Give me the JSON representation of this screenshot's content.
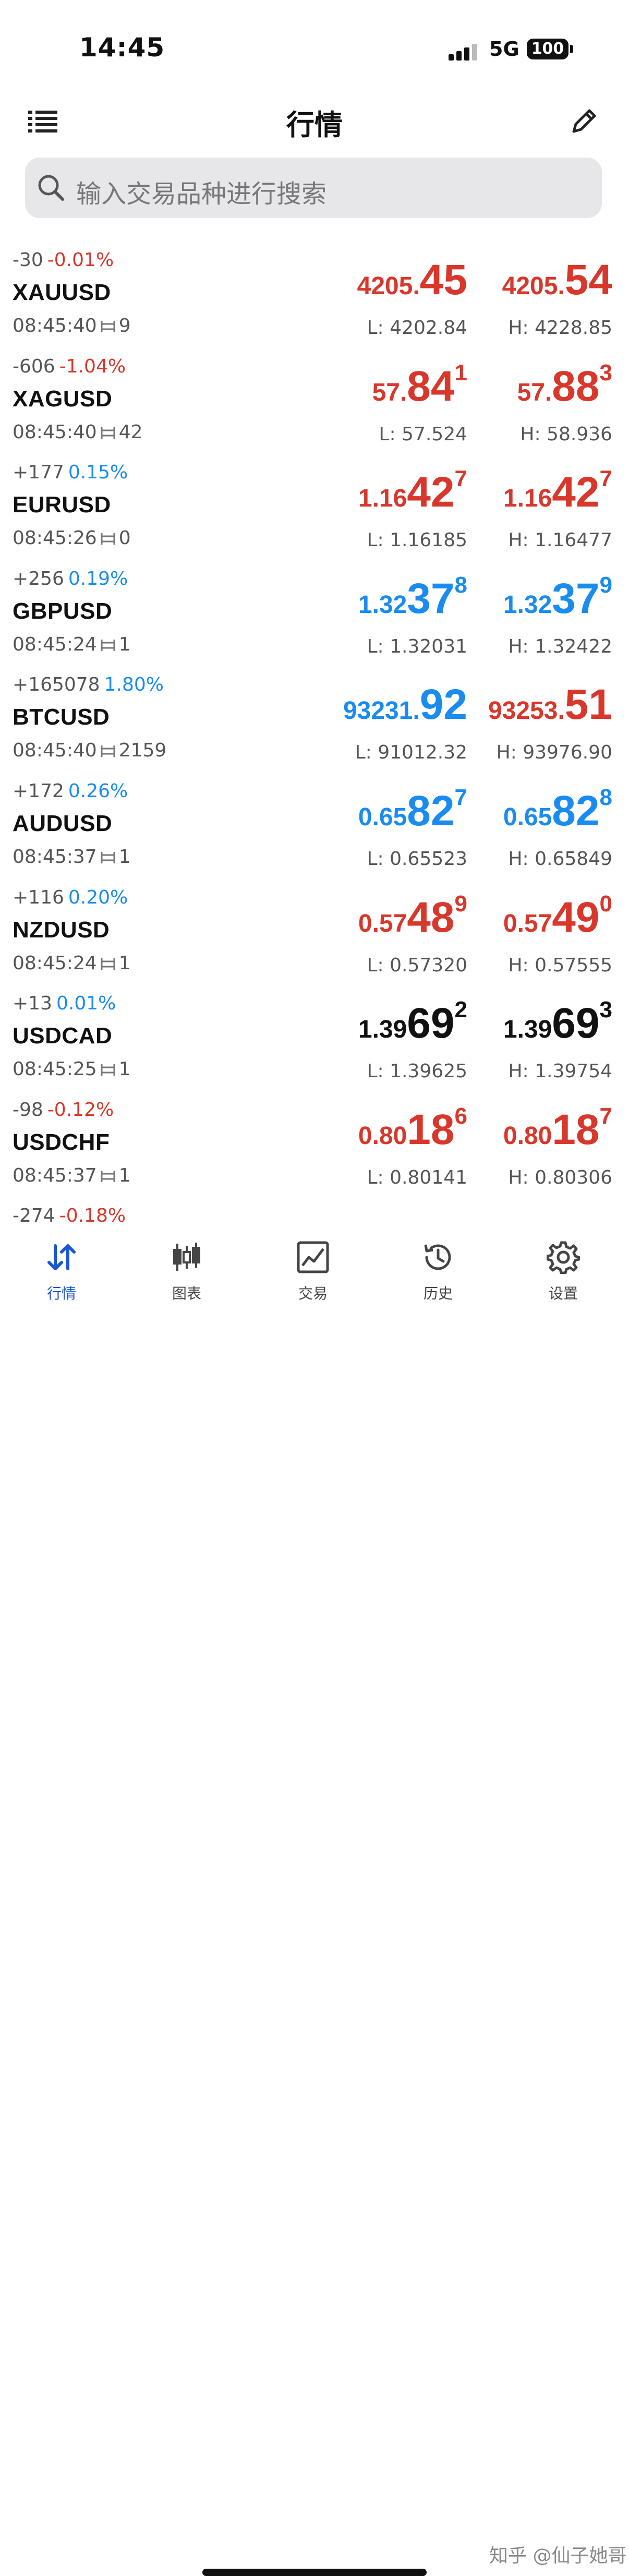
{
  "status": {
    "time": "14:45",
    "network": "5G",
    "battery": "100"
  },
  "nav": {
    "title": "行情"
  },
  "search": {
    "placeholder": "输入交易品种进行搜索"
  },
  "colors": {
    "up": "#1a8cf0",
    "down": "#d8372b",
    "neutral": "#111111",
    "tab_active": "#1a56d6"
  },
  "quotes": [
    {
      "change": "-30",
      "pct": "-0.01%",
      "symbol": "XAUUSD",
      "time": "08:45:40",
      "spread": "9",
      "bid": {
        "small": "4205.",
        "big": "45",
        "sup": ""
      },
      "ask": {
        "small": "4205.",
        "big": "54",
        "sup": ""
      },
      "low": "L: 4202.84",
      "high": "H: 4228.85",
      "pct_dir": "down",
      "bid_dir": "down",
      "ask_dir": "down"
    },
    {
      "change": "-606",
      "pct": "-1.04%",
      "symbol": "XAGUSD",
      "time": "08:45:40",
      "spread": "42",
      "bid": {
        "small": "57.",
        "big": "84",
        "sup": "1"
      },
      "ask": {
        "small": "57.",
        "big": "88",
        "sup": "3"
      },
      "low": "L: 57.524",
      "high": "H: 58.936",
      "pct_dir": "down",
      "bid_dir": "down",
      "ask_dir": "down"
    },
    {
      "change": "+177",
      "pct": "0.15%",
      "symbol": "EURUSD",
      "time": "08:45:26",
      "spread": "0",
      "bid": {
        "small": "1.16",
        "big": "42",
        "sup": "7"
      },
      "ask": {
        "small": "1.16",
        "big": "42",
        "sup": "7"
      },
      "low": "L: 1.16185",
      "high": "H: 1.16477",
      "pct_dir": "up",
      "bid_dir": "down",
      "ask_dir": "down"
    },
    {
      "change": "+256",
      "pct": "0.19%",
      "symbol": "GBPUSD",
      "time": "08:45:24",
      "spread": "1",
      "bid": {
        "small": "1.32",
        "big": "37",
        "sup": "8"
      },
      "ask": {
        "small": "1.32",
        "big": "37",
        "sup": "9"
      },
      "low": "L: 1.32031",
      "high": "H: 1.32422",
      "pct_dir": "up",
      "bid_dir": "up",
      "ask_dir": "up"
    },
    {
      "change": "+165078",
      "pct": "1.80%",
      "symbol": "BTCUSD",
      "time": "08:45:40",
      "spread": "2159",
      "bid": {
        "small": "93231.",
        "big": "92",
        "sup": ""
      },
      "ask": {
        "small": "93253.",
        "big": "51",
        "sup": ""
      },
      "low": "L: 91012.32",
      "high": "H: 93976.90",
      "pct_dir": "up",
      "bid_dir": "up",
      "ask_dir": "down"
    },
    {
      "change": "+172",
      "pct": "0.26%",
      "symbol": "AUDUSD",
      "time": "08:45:37",
      "spread": "1",
      "bid": {
        "small": "0.65",
        "big": "82",
        "sup": "7"
      },
      "ask": {
        "small": "0.65",
        "big": "82",
        "sup": "8"
      },
      "low": "L: 0.65523",
      "high": "H: 0.65849",
      "pct_dir": "up",
      "bid_dir": "up",
      "ask_dir": "up"
    },
    {
      "change": "+116",
      "pct": "0.20%",
      "symbol": "NZDUSD",
      "time": "08:45:24",
      "spread": "1",
      "bid": {
        "small": "0.57",
        "big": "48",
        "sup": "9"
      },
      "ask": {
        "small": "0.57",
        "big": "49",
        "sup": "0"
      },
      "low": "L: 0.57320",
      "high": "H: 0.57555",
      "pct_dir": "up",
      "bid_dir": "down",
      "ask_dir": "down"
    },
    {
      "change": "+13",
      "pct": "0.01%",
      "symbol": "USDCAD",
      "time": "08:45:25",
      "spread": "1",
      "bid": {
        "small": "1.39",
        "big": "69",
        "sup": "2"
      },
      "ask": {
        "small": "1.39",
        "big": "69",
        "sup": "3"
      },
      "low": "L: 1.39625",
      "high": "H: 1.39754",
      "pct_dir": "up",
      "bid_dir": "neutral",
      "ask_dir": "neutral"
    },
    {
      "change": "-98",
      "pct": "-0.12%",
      "symbol": "USDCHF",
      "time": "08:45:37",
      "spread": "1",
      "bid": {
        "small": "0.80",
        "big": "18",
        "sup": "6"
      },
      "ask": {
        "small": "0.80",
        "big": "18",
        "sup": "7"
      },
      "low": "L: 0.80141",
      "high": "H: 0.80306",
      "pct_dir": "down",
      "bid_dir": "down",
      "ask_dir": "down"
    },
    {
      "change": "-274",
      "pct": "-0.18%",
      "symbol": "",
      "time": "",
      "spread": "",
      "bid": {
        "small": "",
        "big": "",
        "sup": ""
      },
      "ask": {
        "small": "",
        "big": "",
        "sup": ""
      },
      "low": "",
      "high": "",
      "pct_dir": "down",
      "bid_dir": "up",
      "ask_dir": "up"
    }
  ],
  "tabs": [
    {
      "label": "行情",
      "icon": "quotes-arrows-icon",
      "active": true
    },
    {
      "label": "图表",
      "icon": "candlestick-icon",
      "active": false
    },
    {
      "label": "交易",
      "icon": "trade-chart-icon",
      "active": false
    },
    {
      "label": "历史",
      "icon": "history-clock-icon",
      "active": false
    },
    {
      "label": "设置",
      "icon": "gear-icon",
      "active": false
    }
  ],
  "watermark": "知乎 @仙子她哥"
}
